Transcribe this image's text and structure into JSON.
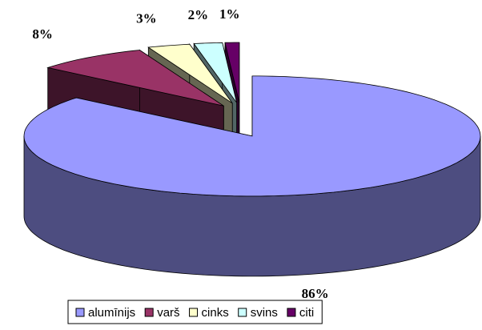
{
  "chart_data": {
    "type": "pie3d",
    "categories": [
      "alumīnijs",
      "varš",
      "cinks",
      "svins",
      "citi"
    ],
    "values": [
      86,
      8,
      3,
      2,
      1
    ],
    "value_labels": [
      "86%",
      "8%",
      "3%",
      "2%",
      "1%"
    ],
    "colors": [
      "#9999ff",
      "#993366",
      "#ffffcc",
      "#ccffff",
      "#660066"
    ],
    "legend": "bottom"
  }
}
